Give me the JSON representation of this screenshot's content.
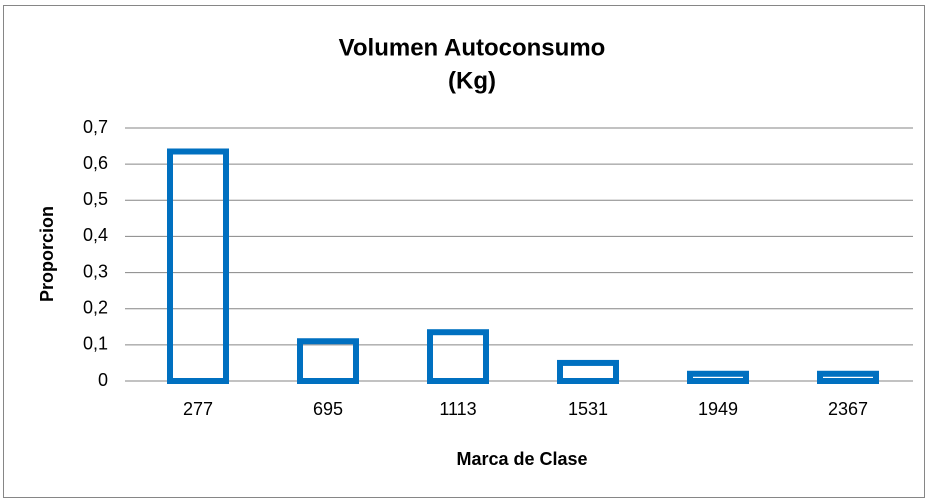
{
  "chart_data": {
    "type": "bar",
    "title": [
      "Volumen Autoconsumo",
      "(Kg)"
    ],
    "x_label": "Marca de Clase",
    "y_label": "Proporcion",
    "categories": [
      "277",
      "695",
      "1113",
      "1531",
      "1949",
      "2367"
    ],
    "values": [
      0.635,
      0.11,
      0.135,
      0.05,
      0.02,
      0.02
    ],
    "color": "#0070c0",
    "ylim": [
      0,
      0.7
    ],
    "yticks": [
      0,
      {
        "value": 0.1,
        "label": "0,1"
      },
      {
        "value": 0.2,
        "label": "0,2"
      },
      {
        "value": 0.3,
        "label": "0,3"
      },
      {
        "value": 0.4,
        "label": "0,4"
      },
      {
        "value": 0.5,
        "label": "0,5"
      },
      {
        "value": 0.6,
        "label": "0,6"
      },
      {
        "value": 0.7,
        "label": "0,7"
      }
    ],
    "grid": true
  }
}
